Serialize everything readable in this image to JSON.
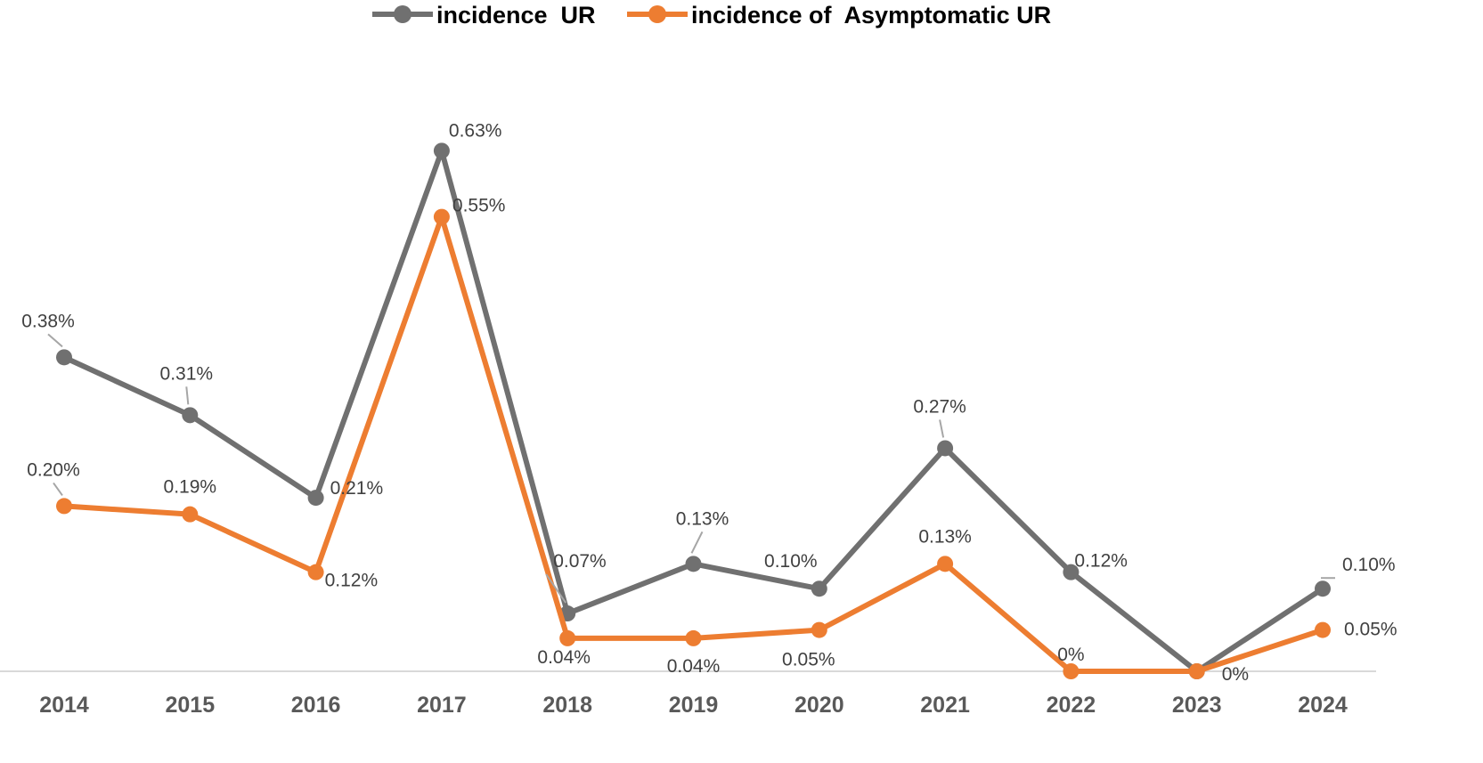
{
  "chart_data": {
    "type": "line",
    "title": "",
    "xlabel": "",
    "ylabel": "",
    "categories": [
      "2014",
      "2015",
      "2016",
      "2017",
      "2018",
      "2019",
      "2020",
      "2021",
      "2022",
      "2023",
      "2024"
    ],
    "ylim": [
      0,
      0.7
    ],
    "grid": false,
    "legend_position": "top",
    "series": [
      {
        "name": "incidence  UR",
        "color": "#707070",
        "values": [
          0.38,
          0.31,
          0.21,
          0.63,
          0.07,
          0.13,
          0.1,
          0.27,
          0.12,
          0,
          0.1
        ],
        "labels": [
          "0.38%",
          "0.31%",
          "0.21%",
          "0.63%",
          "0.07%",
          "0.13%",
          "0.10%",
          "0.27%",
          "0.12%",
          "0%",
          "0.10%"
        ]
      },
      {
        "name": "incidence of  Asymptomatic UR",
        "color": "#ED7D31",
        "values": [
          0.2,
          0.19,
          0.12,
          0.55,
          0.04,
          0.04,
          0.05,
          0.13,
          0,
          0,
          0.05
        ],
        "labels": [
          "0.20%",
          "0.19%",
          "0.12%",
          "0.55%",
          "0.04%",
          "0.04%",
          "0.05%",
          "0.13%",
          "0%",
          "0%",
          "0.05%"
        ]
      }
    ]
  }
}
